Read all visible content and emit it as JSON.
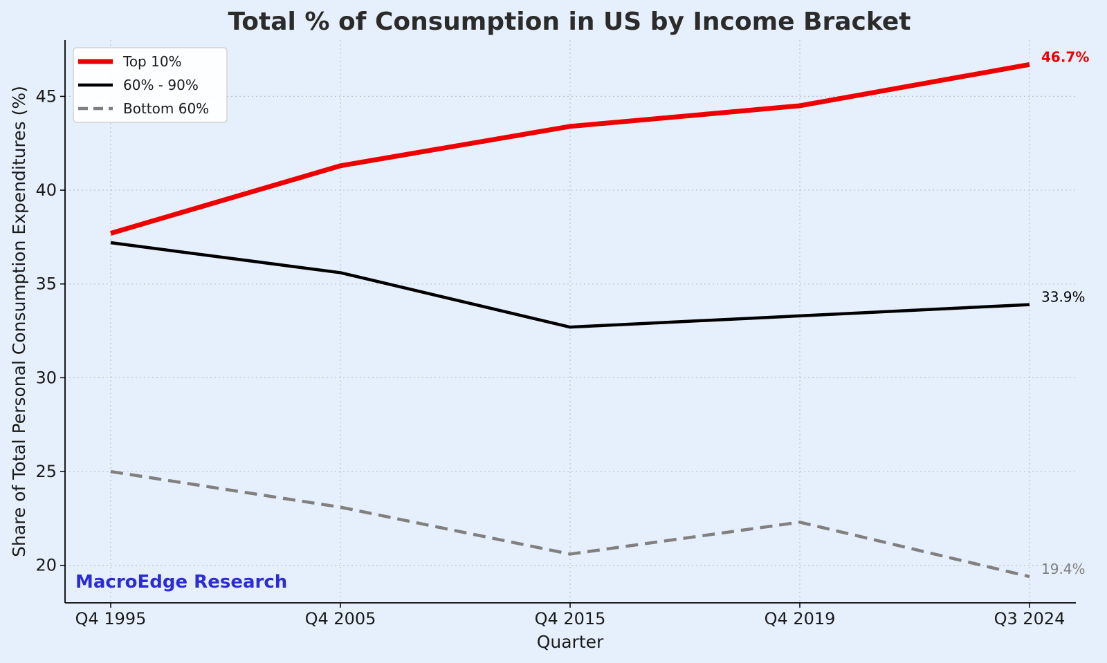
{
  "chart_data": {
    "type": "line",
    "title": "Total % of Consumption in US by Income Bracket",
    "xlabel": "Quarter",
    "ylabel": "Share of Total Personal Consumption Expenditures (%)",
    "categories": [
      "Q4 1995",
      "Q4 2005",
      "Q4 2015",
      "Q4 2019",
      "Q3 2024"
    ],
    "ylim": [
      18,
      48
    ],
    "yticks": [
      20,
      25,
      30,
      35,
      40,
      45
    ],
    "grid": true,
    "legend_position": "top-left",
    "series": [
      {
        "name": "Top 10%",
        "values": [
          37.7,
          41.3,
          43.4,
          44.5,
          46.7
        ],
        "color": "#ee0000",
        "style": "solid",
        "end_label": "46.7%",
        "end_label_bold": true
      },
      {
        "name": "60% - 90%",
        "values": [
          37.2,
          35.6,
          32.7,
          33.3,
          33.9
        ],
        "color": "#000000",
        "style": "solid",
        "end_label": "33.9%",
        "end_label_bold": false
      },
      {
        "name": "Bottom 60%",
        "values": [
          25.0,
          23.1,
          20.6,
          22.3,
          19.4
        ],
        "color": "#808080",
        "style": "dashed",
        "end_label": "19.4%",
        "end_label_bold": false
      }
    ]
  },
  "watermark": {
    "text": "MacroEdge Research",
    "color": "#2b2bd9"
  }
}
